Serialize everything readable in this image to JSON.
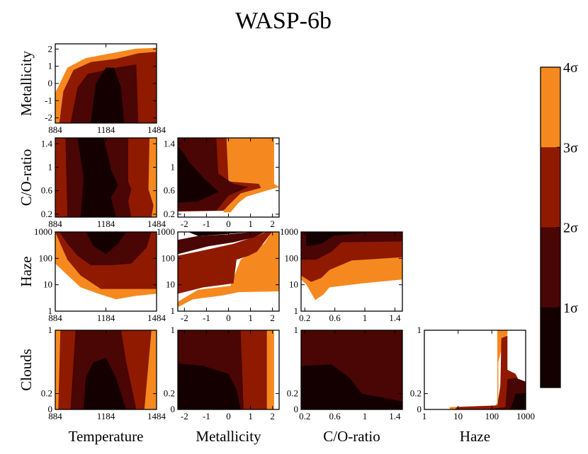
{
  "chart_data": {
    "type": "contour-corner-plot",
    "title": "WASP-6b",
    "parameters": [
      {
        "name": "Temperature",
        "range": [
          884,
          1484
        ],
        "scale": "linear",
        "ticks": [
          "884",
          "1184",
          "1484"
        ]
      },
      {
        "name": "Metallicity",
        "range": [
          -2.3,
          2.3
        ],
        "scale": "linear",
        "ticks": [
          "-2",
          "-1",
          "0",
          "1",
          "2"
        ]
      },
      {
        "name": "C/O-ratio",
        "range": [
          0.15,
          1.5
        ],
        "scale": "linear",
        "ticks": [
          "0.2",
          "0.6",
          "1",
          "1.4"
        ]
      },
      {
        "name": "Haze",
        "range": [
          1,
          1000
        ],
        "scale": "log",
        "ticks": [
          "1",
          "10",
          "100",
          "1000"
        ]
      },
      {
        "name": "Clouds",
        "range": [
          0,
          1
        ],
        "scale": "linear",
        "ticks": [
          "0",
          "0.2",
          "1"
        ]
      }
    ],
    "panels": [
      {
        "x": "Temperature",
        "y": "Metallicity"
      },
      {
        "x": "Temperature",
        "y": "C/O-ratio"
      },
      {
        "x": "Metallicity",
        "y": "C/O-ratio"
      },
      {
        "x": "Temperature",
        "y": "Haze"
      },
      {
        "x": "Metallicity",
        "y": "Haze"
      },
      {
        "x": "C/O-ratio",
        "y": "Haze"
      },
      {
        "x": "Temperature",
        "y": "Clouds"
      },
      {
        "x": "Metallicity",
        "y": "Clouds"
      },
      {
        "x": "C/O-ratio",
        "y": "Clouds"
      },
      {
        "x": "Haze",
        "y": "Clouds"
      }
    ],
    "colorbar": {
      "levels": [
        "1σ",
        "2σ",
        "3σ",
        "4σ"
      ],
      "colors": [
        "#150000",
        "#4a0505",
        "#8f1a00",
        "#f5891f"
      ]
    }
  }
}
